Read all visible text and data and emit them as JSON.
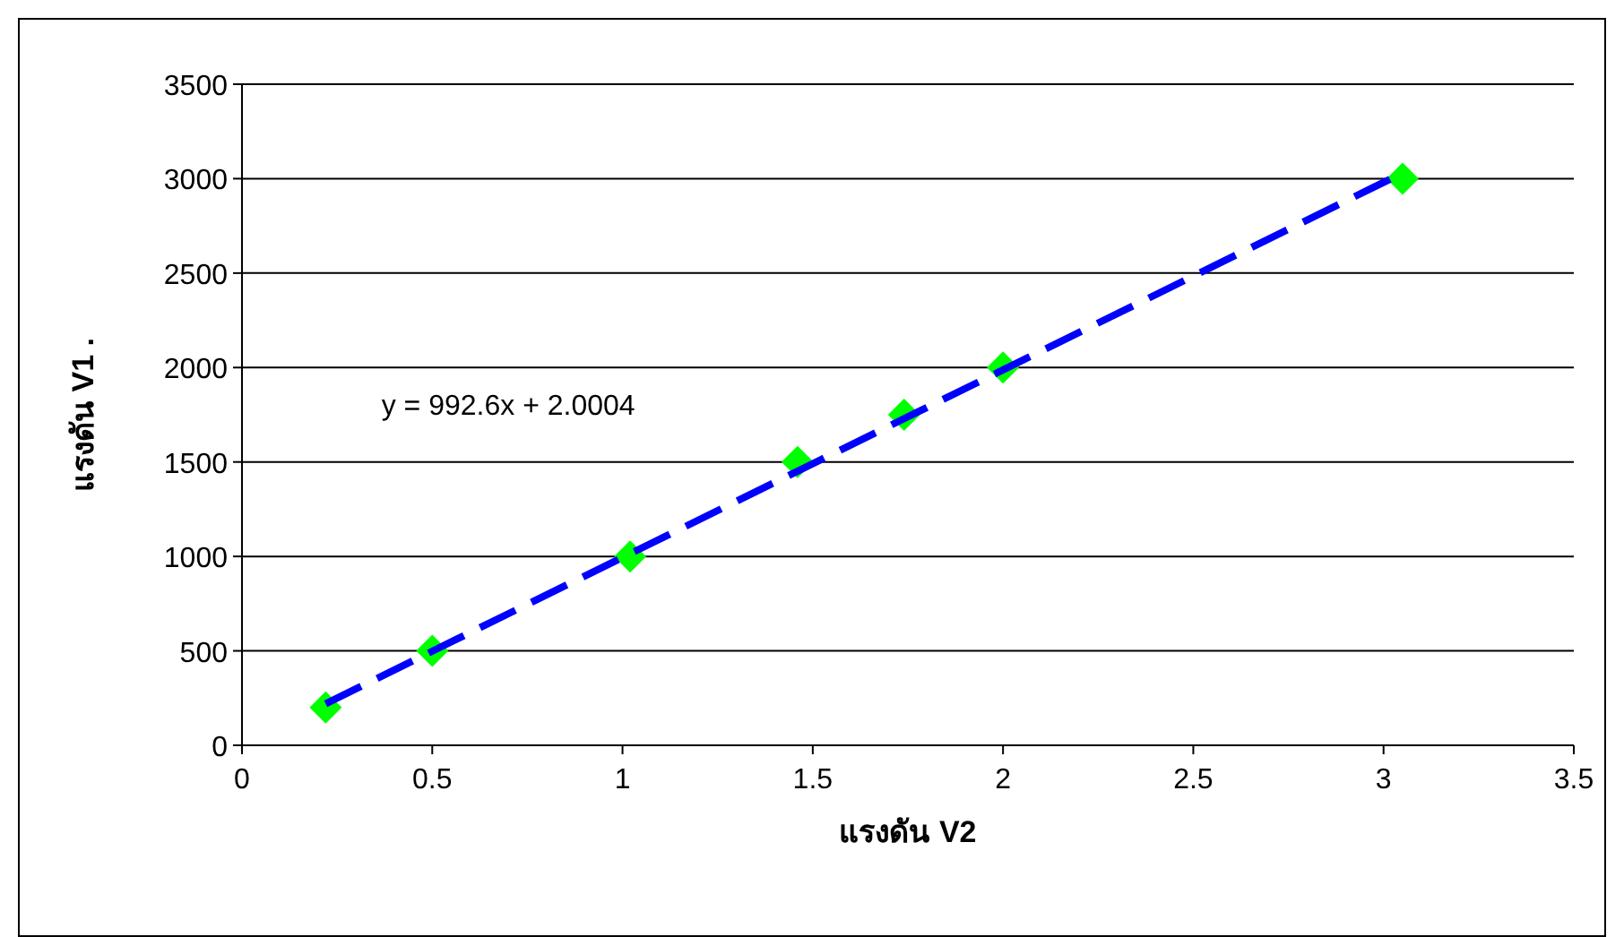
{
  "chart_data": {
    "type": "scatter",
    "xlabel": "แรงดัน V2",
    "ylabel": "แรงดัน V1 .",
    "annotations": [
      "y = 992.6x + 2.0004"
    ],
    "series": [
      {
        "type": "scatter",
        "color": "#00ff00",
        "marker": "diamond",
        "x": [
          0.22,
          0.5,
          1.02,
          1.46,
          1.74,
          2.0,
          3.05
        ],
        "values": [
          200,
          500,
          1000,
          1500,
          1750,
          2000,
          3000
        ]
      },
      {
        "type": "line",
        "color": "#0000ff",
        "line_style": "dashed",
        "marker": "none",
        "x": [
          0.22,
          3.05
        ],
        "values": [
          220,
          3030
        ]
      }
    ],
    "xlim": [
      0,
      3.5
    ],
    "xticks": [
      0,
      0.5,
      1,
      1.5,
      2,
      2.5,
      3,
      3.5
    ],
    "ylim": [
      0,
      3500
    ],
    "yticks": [
      0,
      500,
      1000,
      1500,
      2000,
      2500,
      3000,
      3500
    ],
    "grid": "y"
  }
}
